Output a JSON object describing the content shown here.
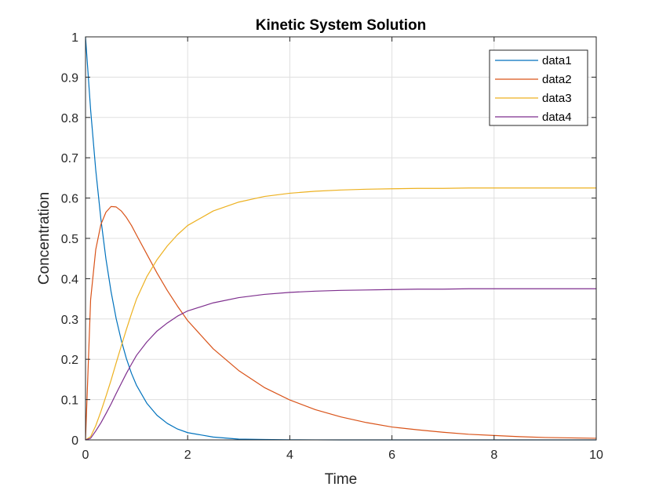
{
  "chart_data": {
    "type": "line",
    "title": "Kinetic System Solution",
    "xlabel": "Time",
    "ylabel": "Concentration",
    "xlim": [
      0,
      10
    ],
    "ylim": [
      0,
      1
    ],
    "x_ticks": [
      0,
      2,
      4,
      6,
      8,
      10
    ],
    "y_ticks": [
      0,
      0.1,
      0.2,
      0.3,
      0.4,
      0.5,
      0.6,
      0.7,
      0.8,
      0.9,
      1
    ],
    "x_tick_labels": [
      "0",
      "2",
      "4",
      "6",
      "8",
      "10"
    ],
    "y_tick_labels": [
      "0",
      "0.1",
      "0.2",
      "0.3",
      "0.4",
      "0.5",
      "0.6",
      "0.7",
      "0.8",
      "0.9",
      "1"
    ],
    "grid": true,
    "legend_position": "top-right",
    "x": [
      0,
      0.1,
      0.2,
      0.3,
      0.4,
      0.5,
      0.6,
      0.7,
      0.8,
      0.9,
      1.0,
      1.2,
      1.4,
      1.6,
      1.8,
      2.0,
      2.5,
      3.0,
      3.5,
      4.0,
      4.5,
      5.0,
      5.5,
      6.0,
      6.5,
      7.0,
      7.5,
      8.0,
      8.5,
      9.0,
      9.5,
      10.0
    ],
    "series": [
      {
        "name": "data1",
        "color": "#0072BD",
        "values": [
          1.0,
          0.819,
          0.67,
          0.549,
          0.449,
          0.368,
          0.301,
          0.247,
          0.202,
          0.165,
          0.135,
          0.091,
          0.061,
          0.041,
          0.027,
          0.018,
          0.007,
          0.002,
          0.001,
          0.0003,
          0.0001,
          0,
          0,
          0,
          0,
          0,
          0,
          0,
          0,
          0,
          0,
          0
        ]
      },
      {
        "name": "data2",
        "color": "#D95319",
        "values": [
          0.0,
          0.348,
          0.472,
          0.534,
          0.565,
          0.579,
          0.578,
          0.568,
          0.552,
          0.532,
          0.508,
          0.461,
          0.414,
          0.371,
          0.332,
          0.296,
          0.226,
          0.172,
          0.13,
          0.099,
          0.075,
          0.057,
          0.043,
          0.032,
          0.025,
          0.019,
          0.014,
          0.011,
          0.008,
          0.006,
          0.005,
          0.004
        ]
      },
      {
        "name": "data3",
        "color": "#EDB120",
        "values": [
          0.0,
          0.008,
          0.035,
          0.07,
          0.108,
          0.148,
          0.191,
          0.233,
          0.274,
          0.313,
          0.35,
          0.405,
          0.447,
          0.481,
          0.509,
          0.532,
          0.568,
          0.59,
          0.604,
          0.612,
          0.617,
          0.62,
          0.622,
          0.623,
          0.624,
          0.624,
          0.625,
          0.625,
          0.625,
          0.625,
          0.625,
          0.625
        ]
      },
      {
        "name": "data4",
        "color": "#7E2F8E",
        "values": [
          0.0,
          0.004,
          0.022,
          0.042,
          0.065,
          0.089,
          0.115,
          0.14,
          0.165,
          0.188,
          0.21,
          0.243,
          0.27,
          0.29,
          0.307,
          0.32,
          0.34,
          0.353,
          0.361,
          0.366,
          0.369,
          0.371,
          0.372,
          0.373,
          0.374,
          0.374,
          0.375,
          0.375,
          0.375,
          0.375,
          0.375,
          0.375
        ]
      }
    ]
  }
}
